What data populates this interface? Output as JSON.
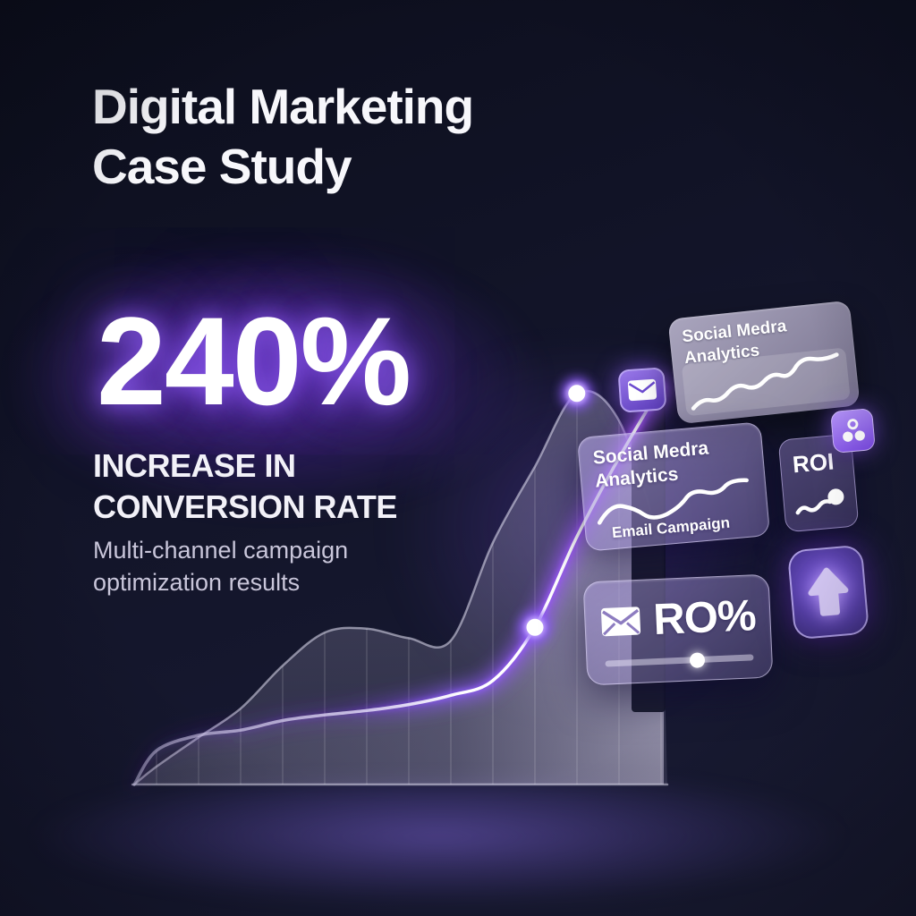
{
  "title": {
    "line1": "Digital Marketing",
    "line2": "Case Study"
  },
  "stat": {
    "value": "240%",
    "label_line1": "INCREASE IN",
    "label_line2": "CONVERSION RATE"
  },
  "subtitle": {
    "line1": "Multi-channel campaign",
    "line2": "optimization results"
  },
  "cards": {
    "analytics_top": {
      "title_line1": "Social Medra",
      "title_line2": "Analytics"
    },
    "analytics_mid": {
      "title_line1": "Social Medra",
      "title_line2": "Analytics",
      "footer_label": "Email Campaign"
    },
    "roi": {
      "label": "ROI"
    },
    "ro_slider": {
      "label": "RO%",
      "slider_percent": 62
    }
  },
  "icons": {
    "envelope_badge": "envelope-icon",
    "envelope_inline": "envelope-icon",
    "group": "group-icon",
    "arrow_up": "arrow-up-icon",
    "slider_handle": "slider-handle-dot"
  },
  "colors": {
    "background_dark": "#11132a",
    "accent_purple": "#8b5cf6",
    "glow_purple": "#7c3aed",
    "halo_purple": "#a855f7",
    "card_lavender": "#a794d8",
    "text_primary": "#ffffff",
    "text_secondary": "#c9c6da"
  },
  "chart_data": {
    "type": "area",
    "title": "",
    "xlabel": "",
    "ylabel": "",
    "axes_labeled": false,
    "grid": "vertical-only",
    "x_gridline_count": 13,
    "series": [
      {
        "name": "secondary-trend",
        "values_pct": [
          4.5,
          11.8,
          19,
          29.7,
          38,
          39,
          36.6,
          36,
          60.5,
          79.5,
          97.8,
          91,
          60
        ]
      },
      {
        "name": "primary-campaign",
        "values_pct": [
          8.5,
          12.3,
          13.6,
          16,
          17.4,
          18.5,
          20,
          22.3,
          26,
          39.3,
          62,
          81.7,
          99.5
        ]
      }
    ],
    "markers": [
      {
        "series": "primary-campaign",
        "x_pct": 75.0,
        "value_pct": 39.3
      },
      {
        "series": "secondary-trend",
        "x_pct": 83.3,
        "value_pct": 97.8
      }
    ],
    "note": "Decorative glassmorphism area chart; no tick labels or numeric axes are shown"
  }
}
